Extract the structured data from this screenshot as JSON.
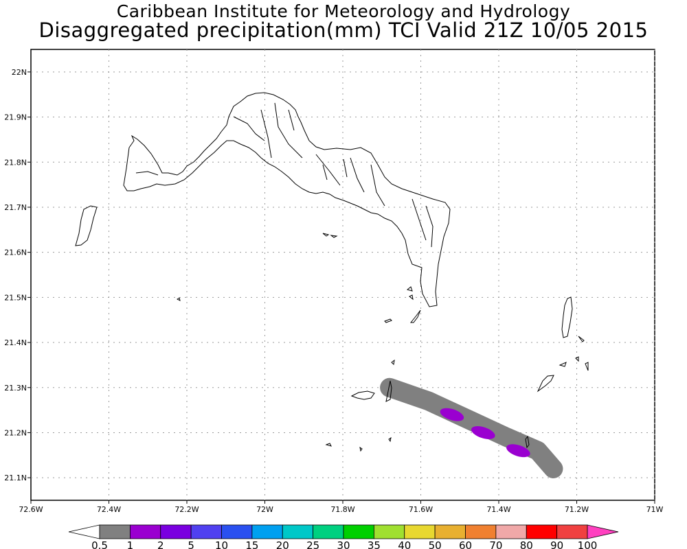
{
  "title": {
    "line1": "Caribbean Institute for Meteorology and Hydrology",
    "line2": "Disaggregated precipitation(mm) TCI Valid 21Z 10/05 2015"
  },
  "axes": {
    "lon_ticks": [
      "72.6W",
      "72.4W",
      "72.2W",
      "72W",
      "71.8W",
      "71.6W",
      "71.4W",
      "71.2W",
      "71W"
    ],
    "lat_ticks": [
      "21.1N",
      "21.2N",
      "21.3N",
      "21.4N",
      "21.5N",
      "21.6N",
      "21.7N",
      "21.8N",
      "21.9N",
      "22N"
    ]
  },
  "chart_data": {
    "type": "heatmap",
    "units": "mm",
    "lon_range": [
      -72.6,
      -71.0
    ],
    "lat_range": [
      21.05,
      22.05
    ],
    "grid": true,
    "colorbar": {
      "levels": [
        "0.5",
        "1",
        "2",
        "5",
        "10",
        "15",
        "20",
        "25",
        "30",
        "35",
        "40",
        "50",
        "60",
        "70",
        "80",
        "90",
        "100"
      ],
      "colors": [
        "#ffffff",
        "#808080",
        "#9a00d0",
        "#7a00e0",
        "#5040f0",
        "#2a50f0",
        "#00a0f0",
        "#00c8c8",
        "#00d080",
        "#00d000",
        "#a0e030",
        "#e8d830",
        "#e8b030",
        "#f08030",
        "#f0a8a8",
        "#ff0000",
        "#f04040",
        "#ff40c0"
      ]
    },
    "precip_band": {
      "level": "1-2 mm",
      "path_lonlat": [
        [
          -71.68,
          21.3
        ],
        [
          -71.58,
          21.27
        ],
        [
          -71.48,
          21.23
        ],
        [
          -71.38,
          21.19
        ],
        [
          -71.3,
          21.16
        ],
        [
          -71.26,
          21.12
        ]
      ],
      "cores_2_5mm": [
        [
          -71.52,
          21.24
        ],
        [
          -71.44,
          21.2
        ],
        [
          -71.35,
          21.16
        ]
      ]
    }
  }
}
